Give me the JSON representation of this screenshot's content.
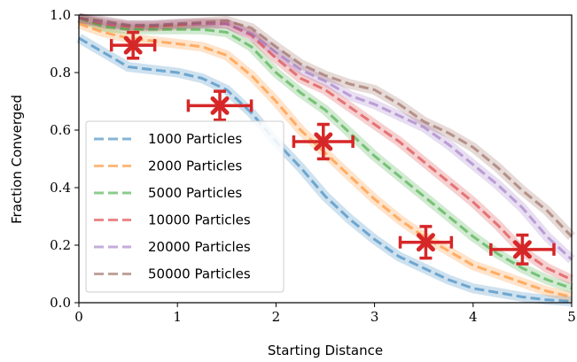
{
  "chart_data": {
    "type": "line",
    "xlabel": "Starting Distance",
    "ylabel": "Fraction Converged",
    "xlim": [
      0,
      5
    ],
    "ylim": [
      0,
      1
    ],
    "x_ticks": [
      0,
      1,
      2,
      3,
      4,
      5
    ],
    "y_ticks": [
      0.0,
      0.2,
      0.4,
      0.6,
      0.8,
      1.0
    ],
    "x_tick_labels": [
      "0",
      "1",
      "2",
      "3",
      "4",
      "5"
    ],
    "y_tick_labels": [
      "0.0",
      "0.2",
      "0.4",
      "0.6",
      "0.8",
      "1.0"
    ],
    "grid": false,
    "legend_position": "lower-left",
    "x": [
      0,
      0.25,
      0.5,
      0.75,
      1.0,
      1.25,
      1.5,
      1.75,
      2.0,
      2.25,
      2.5,
      2.75,
      3.0,
      3.25,
      3.5,
      3.75,
      4.0,
      4.25,
      4.5,
      4.75,
      5.0
    ],
    "series": [
      {
        "name": "1000 Particles",
        "color": "#1f77b4",
        "values": [
          0.92,
          0.87,
          0.82,
          0.81,
          0.8,
          0.78,
          0.74,
          0.66,
          0.56,
          0.47,
          0.37,
          0.29,
          0.22,
          0.16,
          0.12,
          0.08,
          0.05,
          0.035,
          0.02,
          0.01,
          0.005
        ]
      },
      {
        "name": "2000 Particles",
        "color": "#ff7f0e",
        "values": [
          0.97,
          0.94,
          0.92,
          0.91,
          0.9,
          0.89,
          0.86,
          0.79,
          0.7,
          0.6,
          0.52,
          0.44,
          0.36,
          0.29,
          0.23,
          0.18,
          0.13,
          0.1,
          0.07,
          0.04,
          0.02
        ]
      },
      {
        "name": "5000 Particles",
        "color": "#2ca02c",
        "values": [
          0.99,
          0.96,
          0.95,
          0.95,
          0.95,
          0.95,
          0.94,
          0.89,
          0.8,
          0.73,
          0.67,
          0.59,
          0.51,
          0.44,
          0.37,
          0.3,
          0.23,
          0.17,
          0.12,
          0.08,
          0.05
        ]
      },
      {
        "name": "10000 Particles",
        "color": "#d62728",
        "values": [
          0.99,
          0.97,
          0.96,
          0.96,
          0.965,
          0.97,
          0.97,
          0.93,
          0.85,
          0.78,
          0.74,
          0.68,
          0.62,
          0.56,
          0.49,
          0.42,
          0.35,
          0.27,
          0.18,
          0.12,
          0.08
        ]
      },
      {
        "name": "20000 Particles",
        "color": "#9467bd",
        "values": [
          0.99,
          0.975,
          0.965,
          0.965,
          0.97,
          0.97,
          0.97,
          0.935,
          0.87,
          0.81,
          0.77,
          0.72,
          0.69,
          0.65,
          0.61,
          0.55,
          0.48,
          0.41,
          0.33,
          0.23,
          0.15
        ]
      },
      {
        "name": "50000 Particles",
        "color": "#8c564b",
        "values": [
          0.99,
          0.98,
          0.965,
          0.965,
          0.97,
          0.975,
          0.98,
          0.955,
          0.89,
          0.83,
          0.79,
          0.76,
          0.74,
          0.69,
          0.63,
          0.59,
          0.54,
          0.47,
          0.39,
          0.32,
          0.23
        ]
      }
    ],
    "markers": {
      "color": "#d62728",
      "points": [
        {
          "x": 0.55,
          "y": 0.895,
          "xerr": 0.22,
          "yerr": 0.045
        },
        {
          "x": 1.43,
          "y": 0.685,
          "xerr": 0.32,
          "yerr": 0.05
        },
        {
          "x": 2.48,
          "y": 0.56,
          "xerr": 0.3,
          "yerr": 0.06
        },
        {
          "x": 3.52,
          "y": 0.21,
          "xerr": 0.26,
          "yerr": 0.055
        },
        {
          "x": 4.5,
          "y": 0.185,
          "xerr": 0.32,
          "yerr": 0.05
        }
      ]
    }
  }
}
